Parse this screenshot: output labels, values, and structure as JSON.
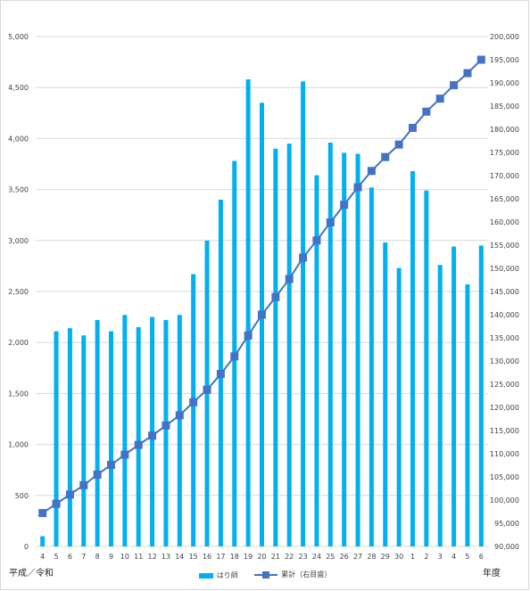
{
  "chart_data": {
    "type": "bar",
    "x_axis_caption": "平成／令和",
    "x_axis_caption_right": "年度",
    "categories": [
      "4",
      "5",
      "6",
      "7",
      "8",
      "9",
      "10",
      "11",
      "12",
      "13",
      "14",
      "15",
      "16",
      "17",
      "18",
      "19",
      "20",
      "21",
      "22",
      "23",
      "24",
      "25",
      "26",
      "27",
      "28",
      "29",
      "30",
      "1",
      "2",
      "3",
      "4",
      "5",
      "6"
    ],
    "series": [
      {
        "name": "はり師",
        "type": "bar",
        "axis": "left",
        "color": "#00B0F0",
        "values": [
          100,
          2110,
          2140,
          2070,
          2220,
          2110,
          2270,
          2150,
          2250,
          2220,
          2270,
          2670,
          3000,
          3400,
          3780,
          4580,
          4350,
          3900,
          3950,
          4560,
          3640,
          3960,
          3860,
          3850,
          3520,
          2980,
          2730,
          3680,
          3490,
          2760,
          2940,
          2570,
          2950
        ]
      },
      {
        "name": "累計（右目盛）",
        "type": "line",
        "axis": "right",
        "color": "#4472C4",
        "values": [
          97200,
          99200,
          101200,
          103200,
          105500,
          107600,
          109800,
          111900,
          113900,
          116100,
          118300,
          121100,
          123800,
          127200,
          131000,
          135500,
          140000,
          143800,
          147700,
          152300,
          156000,
          159900,
          163700,
          167500,
          171000,
          174000,
          176700,
          180300,
          183800,
          186600,
          189500,
          192100,
          195000
        ]
      }
    ],
    "y_left": {
      "min": 0,
      "max": 5000,
      "step": 500,
      "ticks": [
        "0",
        "500",
        "1,000",
        "1,500",
        "2,000",
        "2,500",
        "3,000",
        "3,500",
        "4,000",
        "4,500",
        "5,000"
      ]
    },
    "y_right": {
      "min": 90000,
      "max": 200000,
      "step": 5000,
      "ticks": [
        "90,000",
        "95,000",
        "100,000",
        "105,000",
        "110,000",
        "115,000",
        "120,000",
        "125,000",
        "130,000",
        "135,000",
        "140,000",
        "145,000",
        "150,000",
        "155,000",
        "160,000",
        "165,000",
        "170,000",
        "175,000",
        "180,000",
        "185,000",
        "190,000",
        "195,000",
        "200,000"
      ]
    },
    "grid": true,
    "legend_position": "bottom"
  }
}
